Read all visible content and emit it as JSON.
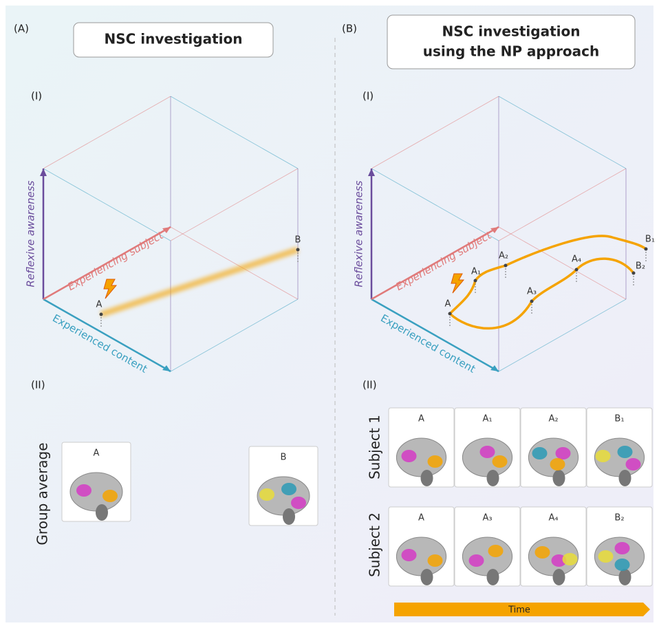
{
  "panel_a": {
    "letter": "(A)",
    "title": "NSC investigation",
    "part_1": "(I)",
    "part_2": "(II)",
    "axes": {
      "y": "Reflexive awareness",
      "z": "Experiencing subject",
      "x": "Experienced content"
    },
    "points": [
      "A",
      "B"
    ],
    "row_label": "Group average",
    "cards": [
      "A",
      "B"
    ]
  },
  "panel_b": {
    "letter": "(B)",
    "title": [
      "NSC investigation",
      "using the NP approach"
    ],
    "part_1": "(I)",
    "part_2": "(II)",
    "axes": {
      "y": "Reflexive awareness",
      "z": "Experiencing subject",
      "x": "Experienced content"
    },
    "points": [
      "A",
      "A₁",
      "A₂",
      "A₃",
      "A₄",
      "B₁",
      "B₂"
    ],
    "rows": [
      {
        "label": "Subject 1",
        "cards": [
          "A",
          "A₁",
          "A₂",
          "B₁"
        ]
      },
      {
        "label": "Subject 2",
        "cards": [
          "A",
          "A₃",
          "A₄",
          "B₂"
        ]
      }
    ],
    "time": "Time"
  }
}
